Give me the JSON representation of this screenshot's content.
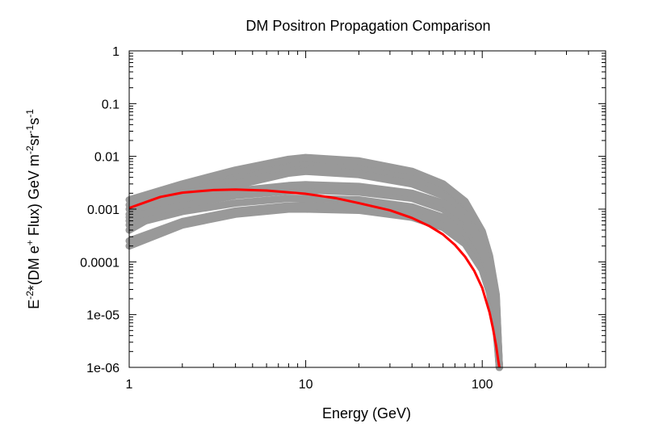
{
  "chart_data": {
    "type": "line",
    "title": "DM Positron Propagation Comparison",
    "xlabel": "Energy (GeV)",
    "ylabel": {
      "base": "E",
      "exp1": "-2",
      "mid": "*(DM e",
      "exp2": "+",
      "mid2": " Flux) GeV m",
      "exp3": "-2",
      "mid3": "sr",
      "exp4": "-1",
      "mid4": "s",
      "exp5": "-1"
    },
    "xscale": "log",
    "yscale": "log",
    "xlim": [
      1,
      500
    ],
    "ylim": [
      1e-06,
      1
    ],
    "x_ticks": [
      {
        "value": 1,
        "label": "1"
      },
      {
        "value": 10,
        "label": "10"
      },
      {
        "value": 100,
        "label": "100"
      }
    ],
    "y_ticks": [
      {
        "value": 1,
        "label": "1"
      },
      {
        "value": 0.1,
        "label": "0.1"
      },
      {
        "value": 0.01,
        "label": "0.01"
      },
      {
        "value": 0.001,
        "label": "0.001"
      },
      {
        "value": 0.0001,
        "label": "0.0001"
      },
      {
        "value": 1e-05,
        "label": "1e-05"
      },
      {
        "value": 1e-06,
        "label": "1e-06"
      }
    ],
    "grid": false,
    "legend": "none",
    "colors": {
      "gray_band": "#999999",
      "highlight": "#ff0000"
    },
    "series": [
      {
        "color": "#ff0000",
        "x": [
          1,
          1.5,
          2,
          3,
          4,
          6,
          10,
          15,
          20,
          30,
          40,
          50,
          60,
          70,
          80,
          90,
          100,
          110,
          115,
          120,
          123,
          125
        ],
        "y": [
          0.00105,
          0.0017,
          0.00205,
          0.0023,
          0.00235,
          0.00225,
          0.00195,
          0.0016,
          0.0013,
          0.00095,
          0.00068,
          0.00048,
          0.00033,
          0.00021,
          0.000125,
          6.8e-05,
          3.2e-05,
          1.1e-05,
          5.5e-06,
          2.5e-06,
          1.4e-06,
          1e-06
        ]
      }
    ],
    "gray_curves": [
      {
        "x": [
          1,
          2,
          4,
          8,
          10,
          20,
          40,
          60,
          80,
          100,
          110,
          120,
          125
        ],
        "y": [
          0.0004,
          0.0015,
          0.0035,
          0.006,
          0.0065,
          0.0055,
          0.0035,
          0.002,
          0.0009,
          0.00025,
          9e-05,
          1.5e-05,
          1e-06
        ]
      },
      {
        "x": [
          1,
          2,
          4,
          8,
          10,
          20,
          40,
          60,
          80,
          100,
          110,
          120,
          125
        ],
        "y": [
          0.0008,
          0.002,
          0.0042,
          0.0072,
          0.0078,
          0.0066,
          0.0042,
          0.0024,
          0.0011,
          0.0003,
          0.0001,
          1.8e-05,
          1e-06
        ]
      },
      {
        "x": [
          1,
          2,
          4,
          8,
          10,
          20,
          40,
          60,
          80,
          100,
          110,
          120,
          125
        ],
        "y": [
          0.0012,
          0.0026,
          0.005,
          0.0085,
          0.0092,
          0.0078,
          0.005,
          0.0029,
          0.0013,
          0.00036,
          0.00012,
          2.2e-05,
          1e-06
        ]
      },
      {
        "x": [
          1,
          2,
          4,
          8,
          10,
          20,
          40,
          60,
          80,
          100,
          110,
          120,
          125
        ],
        "y": [
          0.0015,
          0.003,
          0.0055,
          0.0088,
          0.0095,
          0.0082,
          0.0052,
          0.003,
          0.0014,
          0.00038,
          0.00013,
          2.4e-05,
          1e-06
        ]
      },
      {
        "x": [
          1,
          2,
          4,
          8,
          10,
          20,
          40,
          60,
          80,
          100,
          110,
          120,
          125
        ],
        "y": [
          0.0006,
          0.0014,
          0.0028,
          0.0048,
          0.0052,
          0.0045,
          0.003,
          0.0018,
          0.0008,
          0.00022,
          8e-05,
          1.4e-05,
          1e-06
        ]
      },
      {
        "x": [
          1,
          2,
          4,
          8,
          10,
          20,
          40,
          60,
          80,
          100,
          110,
          120,
          125
        ],
        "y": [
          0.0002,
          0.0005,
          0.0008,
          0.001,
          0.001,
          0.00095,
          0.0007,
          0.00045,
          0.00022,
          7e-05,
          2.6e-05,
          5e-06,
          1e-06
        ]
      },
      {
        "x": [
          1,
          2,
          4,
          8,
          10,
          20,
          40,
          60,
          80,
          100,
          110,
          120,
          125
        ],
        "y": [
          0.00025,
          0.00058,
          0.00092,
          0.00115,
          0.00118,
          0.0011,
          0.00082,
          0.00052,
          0.00026,
          8e-05,
          3e-05,
          6e-06,
          1e-06
        ]
      },
      {
        "x": [
          1,
          2,
          4,
          8,
          10,
          20,
          40,
          60,
          80,
          100,
          110,
          120,
          125
        ],
        "y": [
          0.0005,
          0.0009,
          0.0013,
          0.0016,
          0.0016,
          0.0015,
          0.0011,
          0.0007,
          0.00035,
          0.00011,
          4e-05,
          8e-06,
          1e-06
        ]
      },
      {
        "x": [
          1,
          2,
          4,
          8,
          10,
          20,
          40,
          60,
          80,
          100,
          110,
          120,
          125
        ],
        "y": [
          0.0007,
          0.0012,
          0.0018,
          0.0022,
          0.0023,
          0.0021,
          0.0016,
          0.001,
          0.0005,
          0.00015,
          5.5e-05,
          1e-05,
          1e-06
        ]
      },
      {
        "x": [
          1,
          2,
          4,
          8,
          10,
          20,
          40,
          60,
          80,
          100,
          110,
          120,
          125
        ],
        "y": [
          0.001,
          0.0016,
          0.0022,
          0.0028,
          0.0029,
          0.0027,
          0.002,
          0.0013,
          0.00065,
          0.0002,
          7e-05,
          1.3e-05,
          1e-06
        ]
      }
    ]
  }
}
